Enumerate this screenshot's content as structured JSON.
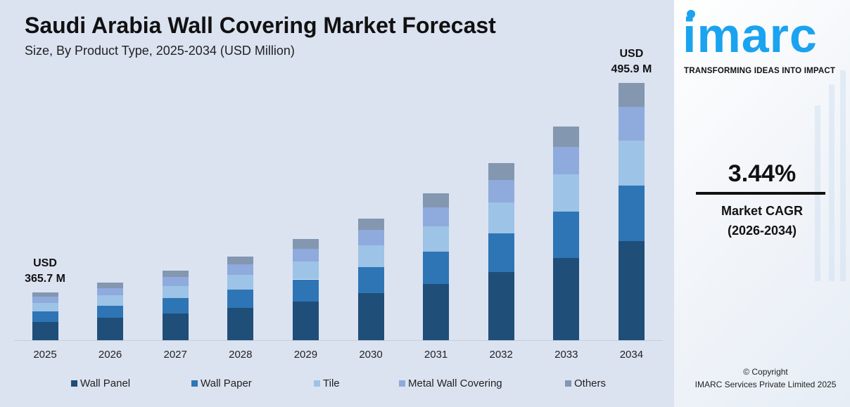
{
  "title": "Saudi Arabia Wall Covering Market Forecast",
  "subtitle": "Size, By Product Type, 2025-2034 (USD Million)",
  "chart_data": {
    "type": "bar",
    "stacked": true,
    "title": "Saudi Arabia Wall Covering Market Forecast",
    "subtitle": "Size, By Product Type, 2025-2034 (USD Million)",
    "categories": [
      "2025",
      "2026",
      "2027",
      "2028",
      "2029",
      "2030",
      "2031",
      "2032",
      "2033",
      "2034"
    ],
    "totals": [
      365.7,
      378.3,
      391.3,
      404.8,
      418.7,
      433.1,
      448.0,
      463.4,
      479.4,
      495.9
    ],
    "total_labels": [
      {
        "index": 0,
        "line1": "USD",
        "line2": "365.7 M"
      },
      {
        "index": 9,
        "line1": "USD",
        "line2": "495.9 M"
      }
    ],
    "series": [
      {
        "name": "Wall Panel",
        "color": "#1f4e79",
        "values": [
          140.8,
          145.6,
          150.7,
          155.8,
          161.2,
          166.7,
          172.5,
          178.4,
          184.6,
          190.9
        ]
      },
      {
        "name": "Wall Paper",
        "color": "#2e75b6",
        "values": [
          79.4,
          82.1,
          84.9,
          87.8,
          90.9,
          94.0,
          97.2,
          100.6,
          104.0,
          107.6
        ]
      },
      {
        "name": "Tile",
        "color": "#9dc3e6",
        "values": [
          64.0,
          66.2,
          68.5,
          70.8,
          73.3,
          75.8,
          78.4,
          81.1,
          83.9,
          86.8
        ]
      },
      {
        "name": "Metal Wall Covering",
        "color": "#8faadc",
        "values": [
          47.5,
          49.2,
          50.9,
          52.6,
          54.4,
          56.3,
          58.2,
          60.2,
          62.3,
          64.5
        ]
      },
      {
        "name": "Others",
        "color": "#8497b0",
        "values": [
          34.0,
          35.2,
          36.3,
          37.8,
          38.9,
          40.3,
          41.7,
          43.1,
          44.6,
          46.1
        ]
      }
    ],
    "legend": "bottom",
    "grid": false
  },
  "side": {
    "logo": "imarc",
    "tagline": "TRANSFORMING IDEAS INTO IMPACT",
    "cagr_value": "3.44%",
    "cagr_label": "Market CAGR",
    "cagr_period": "(2026-2034)",
    "copyright": "© Copyright",
    "company": "IMARC Services Private Limited 2025",
    "brand_color": "#1aa3ef"
  }
}
